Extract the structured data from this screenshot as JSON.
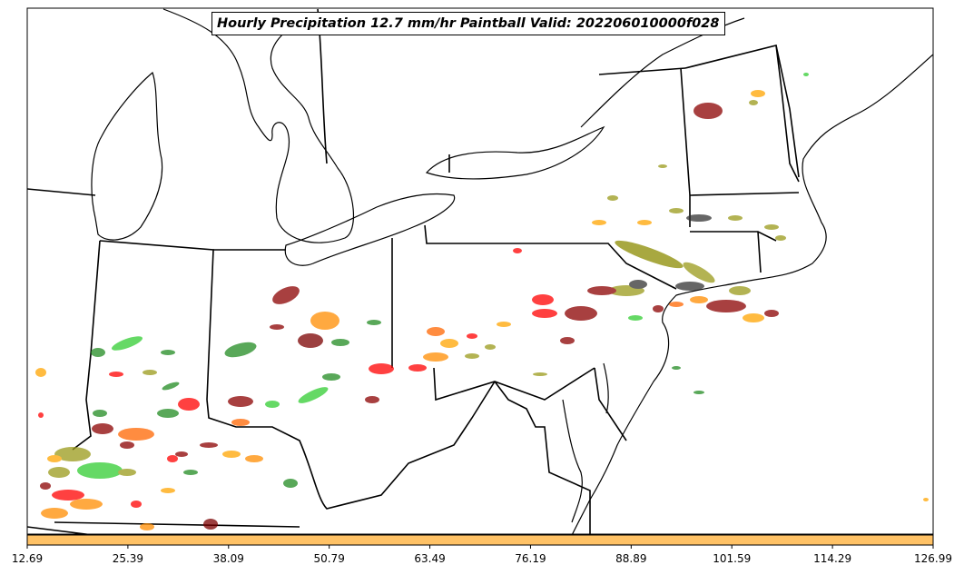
{
  "title": "Hourly Precipitation 12.7 mm/hr Paintball Valid: 202206010000f028",
  "colorbar": {
    "color": "#ffc266",
    "ticks": [
      "12.69",
      "25.39",
      "38.09",
      "50.79",
      "63.49",
      "76.19",
      "88.89",
      "101.59",
      "114.29",
      "126.99"
    ]
  },
  "paintball_colors": [
    "#7b0000",
    "#8b0000",
    "#228b22",
    "#32cd32",
    "#ff0000",
    "#ff6600",
    "#ff8c00",
    "#ffa500",
    "#8b8b00",
    "#9a9a1a",
    "#333333"
  ]
}
